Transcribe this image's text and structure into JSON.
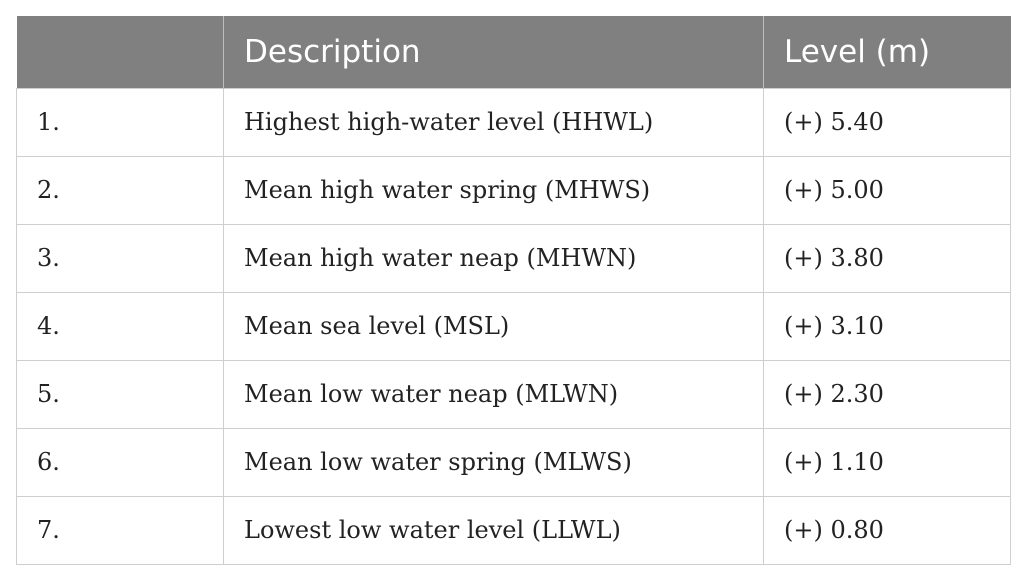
{
  "table": {
    "headers": [
      "",
      "Description",
      "Level (m)"
    ],
    "rows": [
      {
        "num": "1.",
        "description": "Highest high-water level (HHWL)",
        "level": "(+) 5.40"
      },
      {
        "num": "2.",
        "description": "Mean high water spring (MHWS)",
        "level": "(+) 5.00"
      },
      {
        "num": "3.",
        "description": "Mean high water neap (MHWN)",
        "level": "(+) 3.80"
      },
      {
        "num": "4.",
        "description": "Mean sea level (MSL)",
        "level": "(+) 3.10"
      },
      {
        "num": "5.",
        "description": "Mean low water neap (MLWN)",
        "level": "(+) 2.30"
      },
      {
        "num": "6.",
        "description": "Mean low water spring (MLWS)",
        "level": "(+) 1.10"
      },
      {
        "num": "7.",
        "description": "Lowest low water level (LLWL)",
        "level": "(+) 0.80"
      }
    ]
  },
  "colors": {
    "header_bg": "#808080",
    "header_text": "#ffffff",
    "grid": "#cfcfcf"
  }
}
